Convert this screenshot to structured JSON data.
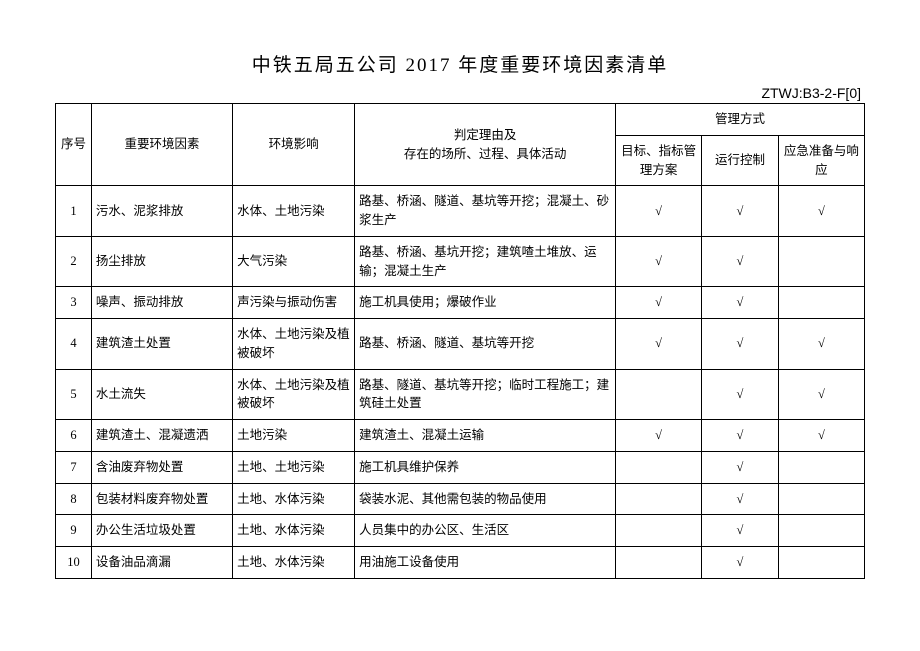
{
  "title": "中铁五局五公司 2017 年度重要环境因素清单",
  "doc_code": "ZTWJ:B3-2-F[0]",
  "check": "√",
  "headers": {
    "seq": "序号",
    "factor": "重要环境因素",
    "impact": "环境影响",
    "reason": "判定理由及\n存在的场所、过程、具体活动",
    "mgmt": "管理方式",
    "m1": "目标、指标管理方案",
    "m2": "运行控制",
    "m3": "应急准备与响应"
  },
  "rows": [
    {
      "seq": "1",
      "factor": "污水、泥浆排放",
      "impact": "水体、土地污染",
      "reason": "路基、桥涵、隧道、基坑等开挖；混凝土、砂浆生产",
      "m1": true,
      "m2": true,
      "m3": true
    },
    {
      "seq": "2",
      "factor": "扬尘排放",
      "impact": "大气污染",
      "reason": "路基、桥涵、基坑开挖；建筑喳土堆放、运输；混凝土生产",
      "m1": true,
      "m2": true,
      "m3": false
    },
    {
      "seq": "3",
      "factor": "噪声、振动排放",
      "impact": "声污染与振动伤害",
      "reason": "施工机具使用；爆破作业",
      "m1": true,
      "m2": true,
      "m3": false
    },
    {
      "seq": "4",
      "factor": "建筑渣土处置",
      "impact": "水体、土地污染及植被破坏",
      "reason": "路基、桥涵、隧道、基坑等开挖",
      "m1": true,
      "m2": true,
      "m3": true
    },
    {
      "seq": "5",
      "factor": "水土流失",
      "impact": "水体、土地污染及植被破坏",
      "reason": "路基、隧道、基坑等开挖；临时工程施工；建筑硅土处置",
      "m1": false,
      "m2": true,
      "m3": true
    },
    {
      "seq": "6",
      "factor": "建筑渣土、混凝遗洒",
      "impact": "土地污染",
      "reason": "建筑渣土、混凝土运输",
      "m1": true,
      "m2": true,
      "m3": true
    },
    {
      "seq": "7",
      "factor": "含油废弃物处置",
      "impact": "土地、土地污染",
      "reason": "施工机具维护保养",
      "m1": false,
      "m2": true,
      "m3": false
    },
    {
      "seq": "8",
      "factor": "包装材料废弃物处置",
      "impact": "土地、水体污染",
      "reason": "袋装水泥、其他需包装的物品使用",
      "m1": false,
      "m2": true,
      "m3": false
    },
    {
      "seq": "9",
      "factor": "办公生活垃圾处置",
      "impact": "土地、水体污染",
      "reason": "人员集中的办公区、生活区",
      "m1": false,
      "m2": true,
      "m3": false
    },
    {
      "seq": "10",
      "factor": "设备油品滴漏",
      "impact": "土地、水体污染",
      "reason": "用油施工设备使用",
      "m1": false,
      "m2": true,
      "m3": false
    }
  ]
}
